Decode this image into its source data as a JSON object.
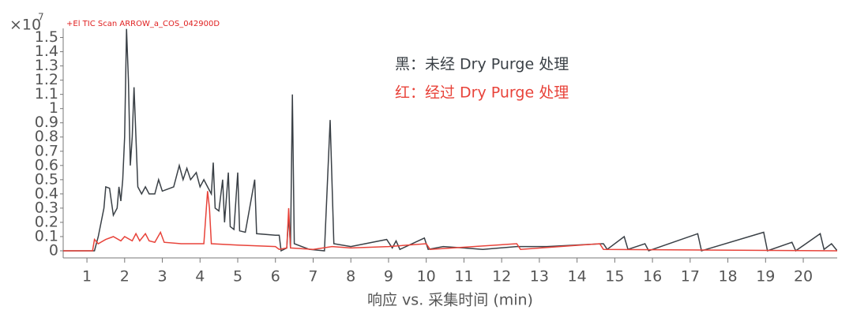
{
  "chart_data": {
    "type": "line",
    "title": "+El TIC Scan ARROW_a_COS_042900D",
    "y_multiplier": "×10",
    "y_multiplier_exponent": "7",
    "x_label": "响应 vs. 采集时间 (min)",
    "xlim": [
      0.37,
      20.9
    ],
    "ylim": [
      -0.05,
      1.564
    ],
    "xticks": [
      1,
      2,
      3,
      4,
      5,
      6,
      7,
      8,
      9,
      10,
      11,
      12,
      13,
      14,
      15,
      16,
      17,
      18,
      19,
      20
    ],
    "yticks": [
      0,
      0.1,
      0.2,
      0.3,
      0.4,
      0.5,
      0.6,
      0.7,
      0.8,
      0.9,
      1,
      1.1,
      1.2,
      1.3,
      1.4,
      1.5
    ],
    "series": [
      {
        "name": "黑：未经 Dry Purge 处理",
        "color": "#3a4046",
        "x": [
          0.37,
          1.2,
          1.3,
          1.45,
          1.5,
          1.6,
          1.7,
          1.8,
          1.85,
          1.9,
          1.95,
          2.0,
          2.05,
          2.1,
          2.15,
          2.2,
          2.25,
          2.3,
          2.35,
          2.45,
          2.55,
          2.65,
          2.8,
          2.9,
          3.0,
          3.3,
          3.45,
          3.55,
          3.65,
          3.75,
          3.9,
          4.0,
          4.1,
          4.2,
          4.3,
          4.35,
          4.4,
          4.5,
          4.6,
          4.65,
          4.75,
          4.8,
          4.9,
          5.0,
          5.05,
          5.2,
          5.45,
          5.5,
          6.0,
          6.1,
          6.15,
          6.3,
          6.35,
          6.4,
          6.45,
          6.5,
          6.9,
          7.3,
          7.45,
          7.55,
          8,
          8.95,
          9.1,
          9.2,
          9.3,
          9.95,
          10.05,
          10.45,
          11,
          11.5,
          12.4,
          13.2,
          14.7,
          14.8,
          15.25,
          15.35,
          15.8,
          15.9,
          17.2,
          17.3,
          18.95,
          19.05,
          19.7,
          19.8,
          20.45,
          20.55,
          20.75,
          20.9
        ],
        "values": [
          0,
          0,
          0.1,
          0.3,
          0.45,
          0.44,
          0.25,
          0.3,
          0.45,
          0.35,
          0.5,
          0.8,
          1.56,
          1.2,
          0.6,
          0.8,
          1.15,
          0.8,
          0.45,
          0.4,
          0.45,
          0.4,
          0.4,
          0.5,
          0.42,
          0.45,
          0.6,
          0.5,
          0.58,
          0.5,
          0.55,
          0.45,
          0.5,
          0.45,
          0.4,
          0.62,
          0.3,
          0.28,
          0.5,
          0.2,
          0.55,
          0.17,
          0.15,
          0.55,
          0.14,
          0.13,
          0.5,
          0.12,
          0.11,
          0.11,
          0,
          0.02,
          0.25,
          0.02,
          1.1,
          0.05,
          0.01,
          0,
          0.92,
          0.05,
          0.03,
          0.08,
          0.02,
          0.07,
          0.01,
          0.09,
          0.01,
          0.03,
          0.02,
          0.01,
          0.03,
          0.03,
          0.05,
          0.01,
          0.1,
          0.01,
          0.05,
          0,
          0.12,
          0,
          0.13,
          0,
          0.06,
          0,
          0.12,
          0.01,
          0.05,
          0
        ]
      },
      {
        "name": "红：经过 Dry Purge 处理",
        "color": "#e8433a",
        "x": [
          0.37,
          1.15,
          1.2,
          1.3,
          1.5,
          1.7,
          1.9,
          2.0,
          2.2,
          2.3,
          2.4,
          2.55,
          2.65,
          2.8,
          2.95,
          3.05,
          3.5,
          4.1,
          4.2,
          4.25,
          4.3,
          5,
          6,
          6.1,
          6.3,
          6.35,
          6.4,
          7,
          7.5,
          8,
          9,
          10,
          10.1,
          12.4,
          12.5,
          14.6,
          14.7,
          20.9
        ],
        "values": [
          0,
          0,
          0.08,
          0.05,
          0.08,
          0.1,
          0.07,
          0.1,
          0.07,
          0.12,
          0.07,
          0.12,
          0.07,
          0.06,
          0.13,
          0.06,
          0.05,
          0.05,
          0.42,
          0.3,
          0.05,
          0.04,
          0.03,
          0.01,
          0.02,
          0.3,
          0.02,
          0.01,
          0.03,
          0.02,
          0.03,
          0.05,
          0.01,
          0.05,
          0.01,
          0.05,
          0.01,
          0
        ]
      }
    ]
  }
}
